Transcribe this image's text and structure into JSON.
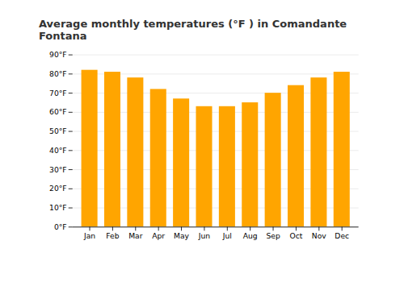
{
  "chart_data": {
    "type": "bar",
    "title": "Average monthly temperatures (°F ) in Comandante Fontana",
    "categories": [
      "Jan",
      "Feb",
      "Mar",
      "Apr",
      "May",
      "Jun",
      "Jul",
      "Aug",
      "Sep",
      "Oct",
      "Nov",
      "Dec"
    ],
    "values": [
      82,
      81,
      78,
      72,
      67,
      63,
      63,
      65,
      70,
      74,
      78,
      81
    ],
    "color": "#FFA500",
    "ylim": [
      0,
      90
    ],
    "yticks": [
      {
        "value": 0,
        "label": "0°F"
      },
      {
        "value": 10,
        "label": "10°F"
      },
      {
        "value": 20,
        "label": "20°F"
      },
      {
        "value": 30,
        "label": "30°F"
      },
      {
        "value": 40,
        "label": "40°F"
      },
      {
        "value": 50,
        "label": "50°F"
      },
      {
        "value": 60,
        "label": "60°F"
      },
      {
        "value": 70,
        "label": "70°F"
      },
      {
        "value": 80,
        "label": "80°F"
      },
      {
        "value": 90,
        "label": "90°F"
      }
    ],
    "grid": true
  }
}
